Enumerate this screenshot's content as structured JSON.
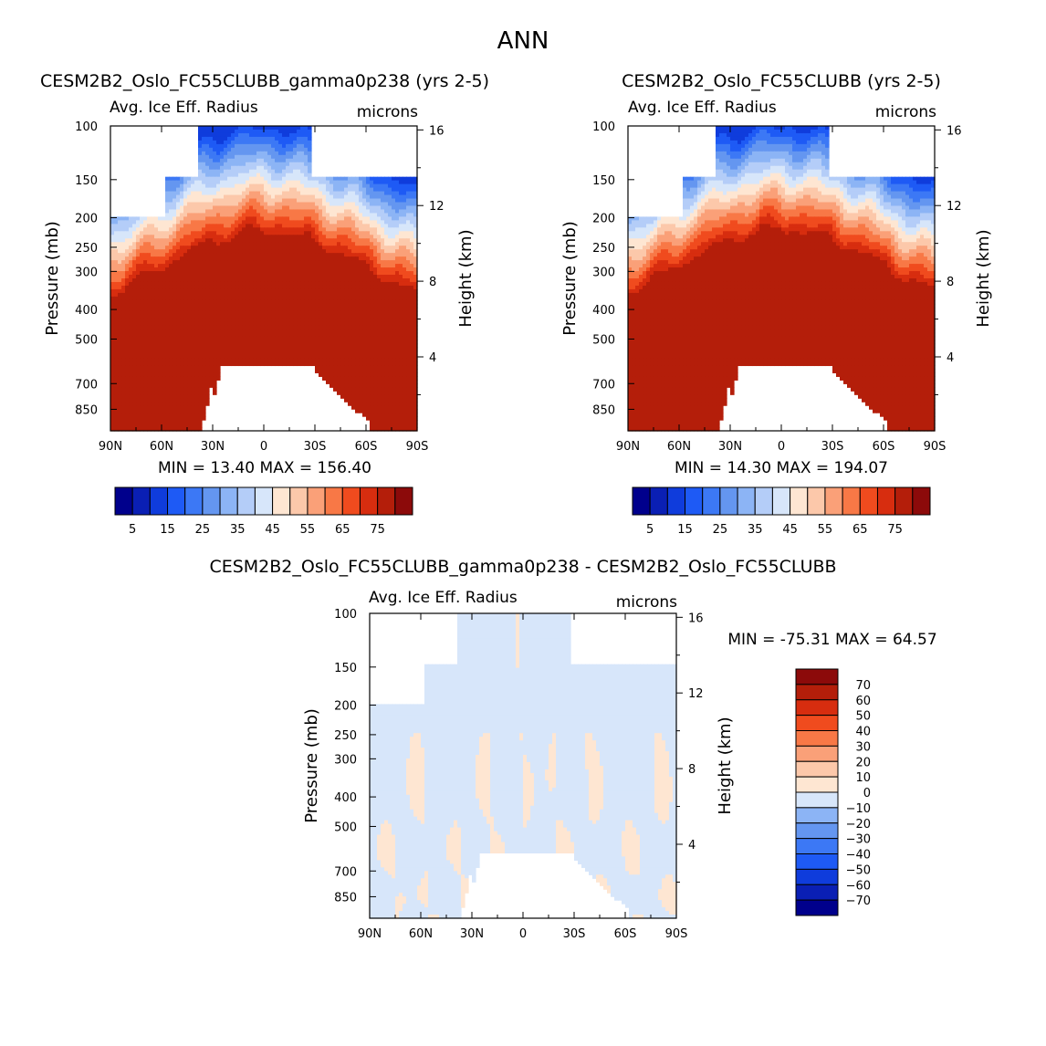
{
  "figure_title": "ANN",
  "chart_data": [
    {
      "type": "contour",
      "title": "CESM2B2_Oslo_FC55CLUBB_gamma0p238 (yrs 2-5)",
      "subtitle": "Avg. Ice Eff. Radius",
      "units": "microns",
      "xlabel": "",
      "ylabel": "Pressure (mb)",
      "y2label": "Height (km)",
      "x_ticks": [
        "90N",
        "60N",
        "30N",
        "0",
        "30S",
        "60S",
        "90S"
      ],
      "y_ticks": [
        "100",
        "150",
        "200",
        "250",
        "300",
        "400",
        "500",
        "700",
        "850"
      ],
      "y2_ticks": [
        "16",
        "12",
        "8",
        "4"
      ],
      "min_max_text": "MIN =   13.40   MAX = 156.40",
      "min": 13.4,
      "max": 156.4,
      "colorbar_labels": [
        "5",
        "15",
        "25",
        "35",
        "45",
        "55",
        "65",
        "75"
      ],
      "levels": [
        5,
        10,
        15,
        20,
        25,
        30,
        35,
        40,
        45,
        50,
        55,
        60,
        65,
        70,
        75
      ],
      "colors": [
        "#00008c",
        "#0a1fb4",
        "#0f3cdc",
        "#1e5af5",
        "#3c78f5",
        "#6496f0",
        "#8cb4f5",
        "#b4cdf8",
        "#d7e6fa",
        "#fee6d2",
        "#fcc8aa",
        "#faa078",
        "#f87846",
        "#f04b1e",
        "#d72d0f",
        "#b41e0a",
        "#8c0a0a"
      ],
      "mask_top": "tropopause cutout",
      "mask_bottom": "orography",
      "cloud_top_km_equator": 10.6,
      "cloud_top_km_pole": 7.4
    },
    {
      "type": "contour",
      "title": "CESM2B2_Oslo_FC55CLUBB (yrs 2-5)",
      "subtitle": "Avg. Ice Eff. Radius",
      "units": "microns",
      "xlabel": "",
      "ylabel": "Pressure (mb)",
      "y2label": "Height (km)",
      "x_ticks": [
        "90N",
        "60N",
        "30N",
        "0",
        "30S",
        "60S",
        "90S"
      ],
      "y_ticks": [
        "100",
        "150",
        "200",
        "250",
        "300",
        "400",
        "500",
        "700",
        "850"
      ],
      "y2_ticks": [
        "16",
        "12",
        "8",
        "4"
      ],
      "min_max_text": "MIN =   14.30   MAX = 194.07",
      "min": 14.3,
      "max": 194.07,
      "colorbar_labels": [
        "5",
        "15",
        "25",
        "35",
        "45",
        "55",
        "65",
        "75"
      ],
      "levels": [
        5,
        10,
        15,
        20,
        25,
        30,
        35,
        40,
        45,
        50,
        55,
        60,
        65,
        70,
        75
      ],
      "colors": [
        "#00008c",
        "#0a1fb4",
        "#0f3cdc",
        "#1e5af5",
        "#3c78f5",
        "#6496f0",
        "#8cb4f5",
        "#b4cdf8",
        "#d7e6fa",
        "#fee6d2",
        "#fcc8aa",
        "#faa078",
        "#f87846",
        "#f04b1e",
        "#d72d0f",
        "#b41e0a",
        "#8c0a0a"
      ],
      "mask_top": "tropopause cutout",
      "mask_bottom": "orography",
      "cloud_top_km_equator": 10.7,
      "cloud_top_km_pole": 7.5
    },
    {
      "type": "contour",
      "title": "CESM2B2_Oslo_FC55CLUBB_gamma0p238 - CESM2B2_Oslo_FC55CLUBB",
      "subtitle": "Avg. Ice Eff. Radius",
      "units": "microns",
      "xlabel": "",
      "ylabel": "Pressure (mb)",
      "y2label": "Height (km)",
      "x_ticks": [
        "90N",
        "60N",
        "30N",
        "0",
        "30S",
        "60S",
        "90S"
      ],
      "y_ticks": [
        "100",
        "150",
        "200",
        "250",
        "300",
        "400",
        "500",
        "700",
        "850"
      ],
      "y2_ticks": [
        "16",
        "12",
        "8",
        "4"
      ],
      "min_max_text": "MIN = -75.31   MAX =   64.57",
      "min": -75.31,
      "max": 64.57,
      "colorbar_labels": [
        "70",
        "60",
        "50",
        "40",
        "30",
        "20",
        "10",
        "0",
        "-10",
        "-20",
        "-30",
        "-40",
        "-50",
        "-60",
        "-70"
      ],
      "levels": [
        -70,
        -60,
        -50,
        -40,
        -30,
        -20,
        -10,
        0,
        10,
        20,
        30,
        40,
        50,
        60,
        70
      ],
      "colors": [
        "#00008c",
        "#0a1fb4",
        "#0f3cdc",
        "#1e5af5",
        "#3c78f5",
        "#6496f0",
        "#8cb4f5",
        "#d7e6fa",
        "#fee6d2",
        "#fcc8aa",
        "#faa078",
        "#f87846",
        "#f04b1e",
        "#d72d0f",
        "#b41e0a",
        "#8c0a0a"
      ],
      "dominant_category": "-10 to 0",
      "mask_top": "tropopause cutout",
      "mask_bottom": "orography"
    }
  ]
}
